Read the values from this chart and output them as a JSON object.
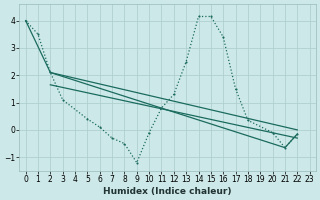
{
  "xlabel": "Humidex (Indice chaleur)",
  "bg_color": "#cde8e8",
  "grid_color": "#b0d0d0",
  "line_color": "#1a6b5e",
  "xlim": [
    -0.5,
    23.5
  ],
  "ylim": [
    -1.5,
    4.6
  ],
  "xticks": [
    0,
    1,
    2,
    3,
    4,
    5,
    6,
    7,
    8,
    9,
    10,
    11,
    12,
    13,
    14,
    15,
    16,
    17,
    18,
    19,
    20,
    21,
    22,
    23
  ],
  "yticks": [
    -1,
    0,
    1,
    2,
    3,
    4
  ],
  "line1_x": [
    0,
    1,
    2,
    3,
    5,
    6,
    7,
    8,
    9,
    10,
    11,
    12,
    13,
    14,
    15,
    16,
    17,
    18,
    20,
    21,
    22
  ],
  "line1_y": [
    4.0,
    3.5,
    2.1,
    1.1,
    0.4,
    0.1,
    -0.3,
    -0.5,
    -1.2,
    -0.1,
    0.8,
    1.3,
    2.5,
    4.15,
    4.15,
    3.4,
    1.5,
    0.35,
    -0.1,
    -0.65,
    -0.15
  ],
  "line2_x": [
    0,
    2,
    21,
    22
  ],
  "line2_y": [
    4.0,
    2.1,
    -0.65,
    -0.15
  ],
  "line3_x": [
    2,
    22
  ],
  "line3_y": [
    2.1,
    0.0
  ],
  "line4_x": [
    2,
    22
  ],
  "line4_y": [
    1.65,
    -0.3
  ]
}
